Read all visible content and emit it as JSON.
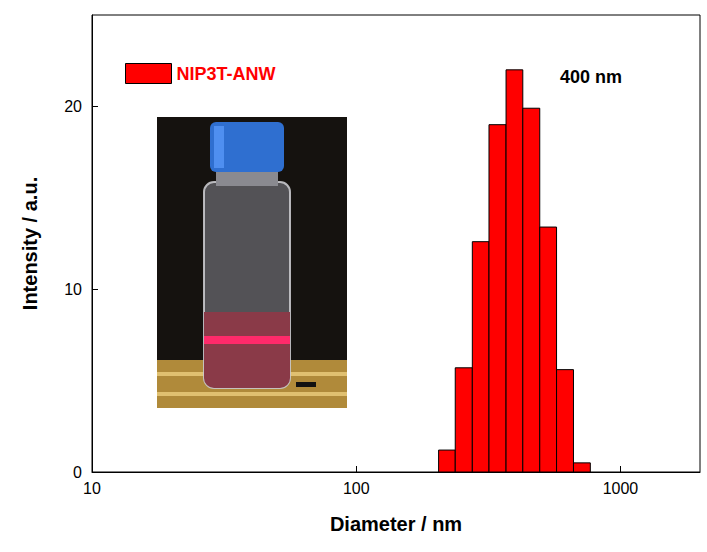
{
  "chart_data": {
    "type": "histogram",
    "xlabel": "Diameter / nm",
    "ylabel": "Intensity / a.u.",
    "annotation": "400 nm",
    "bins": [
      205,
      237,
      275,
      318,
      369,
      427,
      495,
      573,
      664,
      769
    ],
    "series": [
      {
        "name": "NIP3T-ANW",
        "color": "#ff0000",
        "values": [
          1.2,
          5.7,
          12.6,
          19.0,
          22.0,
          19.9,
          13.4,
          5.6,
          0.5
        ]
      }
    ],
    "log": "x",
    "xlim": [
      10,
      2000
    ],
    "xticks": [
      10,
      100,
      1000
    ],
    "ylim": [
      0,
      25
    ],
    "yticks": [
      0,
      10,
      20
    ],
    "legend": "upper left",
    "grid": false
  }
}
